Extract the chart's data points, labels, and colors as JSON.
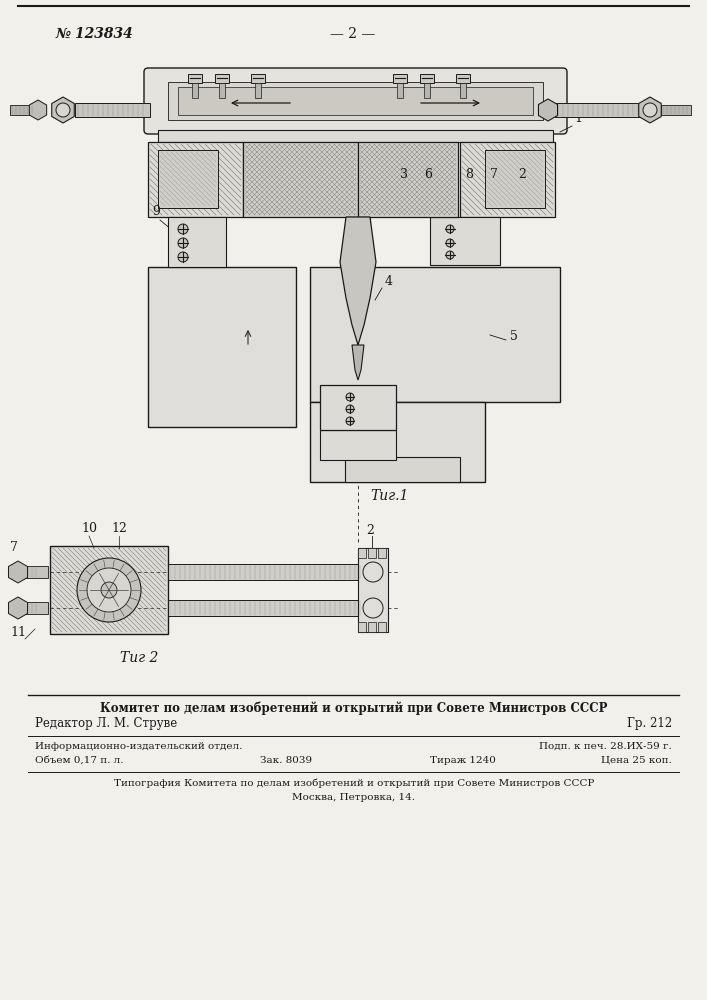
{
  "page_color": "#f2f0eb",
  "black": "#1a1a1a",
  "dark_gray": "#444444",
  "mid_gray": "#888888",
  "light_gray": "#bbbbbb",
  "hatch_gray": "#666666",
  "patent_number": "№ 123834",
  "page_number": "— 2 —",
  "fig1_label": "Τиг.1",
  "fig2_label": "Τиг 2",
  "label_1": "1",
  "label_2": "2",
  "label_3": "3",
  "label_4": "4",
  "label_5": "5",
  "label_6": "6",
  "label_7": "7",
  "label_8": "8",
  "label_9": "9",
  "label_10": "10",
  "label_11": "11",
  "label_12": "12",
  "footer_bold": "Комитет по делам изобретений и открытий при Совете Министров СССР",
  "footer_editor": "Редактор Л. М. Струве",
  "footer_gr": "Гр. 212",
  "footer_info": "Информационно-издательский отдел.",
  "footer_podp": "Подп. к печ. 28.ИХ-59 г.",
  "footer_obem": "Объем 0,17 п. л.",
  "footer_zak": "Зак. 8039",
  "footer_tirazh": "Тираж 1240",
  "footer_tsena": "Цена 25 коп.",
  "footer_tipogr": "Типография Комитета по делам изобретений и открытий при Совете Министров СССР",
  "footer_addr": "Москва, Петровка, 14."
}
